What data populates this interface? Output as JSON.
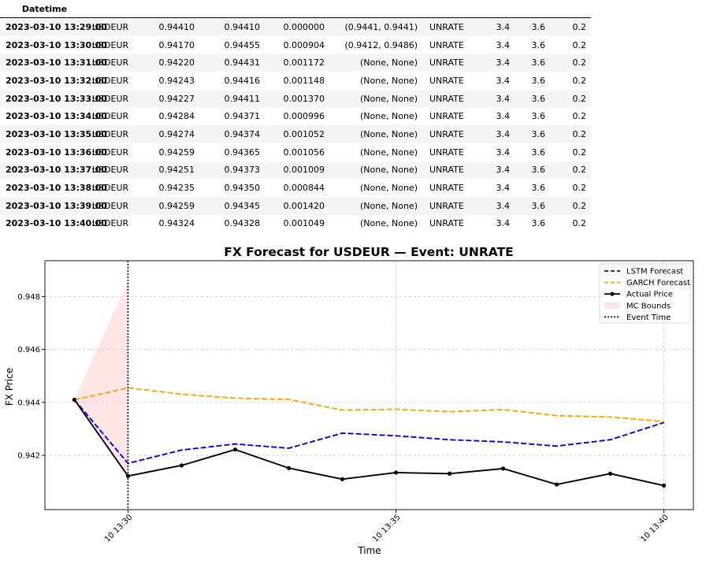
{
  "table": {
    "header": [
      "Datetime",
      "",
      "",
      "",
      "",
      "",
      "",
      "",
      "",
      ""
    ],
    "rows": [
      [
        "2023-03-10 13:29:00",
        "USDEUR",
        "0.94410",
        "0.94410",
        "0.000000",
        "(0.9441, 0.9441)",
        "UNRATE",
        "3.4",
        "3.6",
        "0.2"
      ],
      [
        "2023-03-10 13:30:00",
        "USDEUR",
        "0.94170",
        "0.94455",
        "0.000904",
        "(0.9412, 0.9486)",
        "UNRATE",
        "3.4",
        "3.6",
        "0.2"
      ],
      [
        "2023-03-10 13:31:00",
        "USDEUR",
        "0.94220",
        "0.94431",
        "0.001172",
        "(None, None)",
        "UNRATE",
        "3.4",
        "3.6",
        "0.2"
      ],
      [
        "2023-03-10 13:32:00",
        "USDEUR",
        "0.94243",
        "0.94416",
        "0.001148",
        "(None, None)",
        "UNRATE",
        "3.4",
        "3.6",
        "0.2"
      ],
      [
        "2023-03-10 13:33:00",
        "USDEUR",
        "0.94227",
        "0.94411",
        "0.001370",
        "(None, None)",
        "UNRATE",
        "3.4",
        "3.6",
        "0.2"
      ],
      [
        "2023-03-10 13:34:00",
        "USDEUR",
        "0.94284",
        "0.94371",
        "0.000996",
        "(None, None)",
        "UNRATE",
        "3.4",
        "3.6",
        "0.2"
      ],
      [
        "2023-03-10 13:35:00",
        "USDEUR",
        "0.94274",
        "0.94374",
        "0.001052",
        "(None, None)",
        "UNRATE",
        "3.4",
        "3.6",
        "0.2"
      ],
      [
        "2023-03-10 13:36:00",
        "USDEUR",
        "0.94259",
        "0.94365",
        "0.001056",
        "(None, None)",
        "UNRATE",
        "3.4",
        "3.6",
        "0.2"
      ],
      [
        "2023-03-10 13:37:00",
        "USDEUR",
        "0.94251",
        "0.94373",
        "0.001009",
        "(None, None)",
        "UNRATE",
        "3.4",
        "3.6",
        "0.2"
      ],
      [
        "2023-03-10 13:38:00",
        "USDEUR",
        "0.94235",
        "0.94350",
        "0.000844",
        "(None, None)",
        "UNRATE",
        "3.4",
        "3.6",
        "0.2"
      ],
      [
        "2023-03-10 13:39:00",
        "USDEUR",
        "0.94259",
        "0.94345",
        "0.001420",
        "(None, None)",
        "UNRATE",
        "3.4",
        "3.6",
        "0.2"
      ],
      [
        "2023-03-10 13:40:00",
        "USDEUR",
        "0.94324",
        "0.94328",
        "0.001049",
        "(None, None)",
        "UNRATE",
        "3.4",
        "3.6",
        "0.2"
      ]
    ]
  },
  "chart_data": {
    "type": "line",
    "title": "FX Forecast for USDEUR — Event: UNRATE",
    "xlabel": "Time",
    "ylabel": "FX Price",
    "x": [
      "13:29",
      "13:30",
      "13:31",
      "13:32",
      "13:33",
      "13:34",
      "13:35",
      "13:36",
      "13:37",
      "13:38",
      "13:39",
      "13:40"
    ],
    "x_tick_labels": [
      "10 13:30",
      "10 13:35",
      "10 13:40"
    ],
    "x_tick_positions": [
      "13:30",
      "13:35",
      "13:40"
    ],
    "xlim": [
      "13:28.45",
      "13:40.55"
    ],
    "ylim": [
      0.93995,
      0.94935
    ],
    "y_ticks": [
      0.942,
      0.944,
      0.946,
      0.948
    ],
    "y_tick_labels": [
      "0.942",
      "0.944",
      "0.946",
      "0.948"
    ],
    "grid": true,
    "legend_position": "top-right",
    "series": [
      {
        "name": "LSTM Forecast",
        "style": "dashed",
        "color": "#0000ff",
        "values": [
          0.9441,
          0.9417,
          0.9422,
          0.94243,
          0.94227,
          0.94284,
          0.94274,
          0.94259,
          0.94251,
          0.94235,
          0.94259,
          0.94324
        ]
      },
      {
        "name": "GARCH Forecast",
        "style": "dashed",
        "color": "#ffa500",
        "values": [
          0.9441,
          0.94455,
          0.94431,
          0.94416,
          0.94411,
          0.94371,
          0.94374,
          0.94365,
          0.94373,
          0.9435,
          0.94345,
          0.94328
        ]
      },
      {
        "name": "Actual Price",
        "style": "solid-markers",
        "color": "#000000",
        "values": [
          0.9441,
          0.94122,
          0.94162,
          0.94222,
          0.94152,
          0.9411,
          0.94135,
          0.94131,
          0.9415,
          0.9409,
          0.94131,
          0.94086
        ]
      }
    ],
    "band": {
      "name": "MC Bounds",
      "color": "#ffc0c0",
      "x": [
        "13:29",
        "13:30"
      ],
      "lower": [
        0.9441,
        0.9412
      ],
      "upper": [
        0.9441,
        0.9486
      ]
    },
    "event": {
      "name": "Event Time",
      "x": "13:30",
      "color": "#000000"
    }
  }
}
